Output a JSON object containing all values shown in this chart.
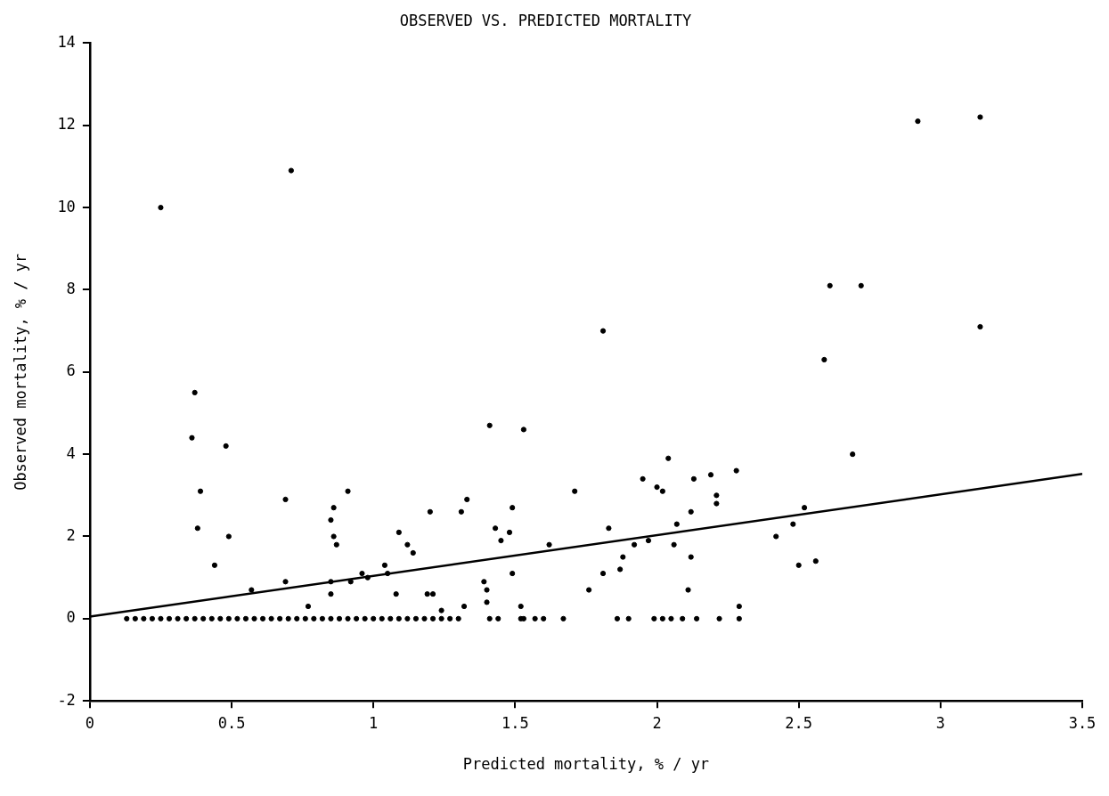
{
  "chart_data": {
    "type": "scatter",
    "title": "OBSERVED VS. PREDICTED MORTALITY",
    "xlabel": "Predicted mortality, % / yr",
    "ylabel": "Observed mortality, % / yr",
    "xlim": [
      0,
      3.5
    ],
    "xticks": [
      0,
      0.5,
      1,
      1.5,
      2,
      2.5,
      3,
      3.5
    ],
    "ylim": [
      -2,
      14
    ],
    "yticks": [
      -2,
      0,
      2,
      4,
      6,
      8,
      10,
      12,
      14
    ],
    "series": [
      {
        "marker": "circle",
        "color": "#000000",
        "x": [
          0.25,
          0.71,
          2.92,
          3.14,
          2.61,
          2.72,
          3.14,
          1.81,
          2.59,
          0.37,
          0.36,
          0.48,
          0.39,
          0.69,
          0.91,
          1.41,
          1.53,
          0.86,
          0.85,
          0.86,
          0.87,
          0.38,
          0.49,
          0.44,
          1.2,
          1.31,
          1.33,
          1.49,
          1.71,
          1.43,
          1.45,
          1.48,
          1.09,
          1.12,
          1.14,
          1.62,
          0.69,
          0.57,
          0.85,
          0.85,
          0.96,
          0.98,
          0.92,
          1.04,
          1.05,
          0.77,
          1.08,
          1.19,
          1.21,
          1.24,
          1.32,
          1.39,
          1.4,
          1.4,
          1.49,
          1.52,
          2.69,
          2.04,
          1.95,
          2.0,
          2.02,
          2.19,
          2.13,
          2.28,
          2.21,
          2.21,
          2.12,
          1.83,
          2.07,
          1.97,
          1.92,
          2.06,
          1.88,
          1.87,
          1.81,
          2.12,
          2.11,
          1.76,
          2.52,
          2.48,
          2.42,
          2.5,
          2.56,
          2.29,
          0.13,
          0.16,
          0.19,
          0.22,
          0.25,
          0.28,
          0.31,
          0.34,
          0.37,
          0.4,
          0.43,
          0.46,
          0.49,
          0.52,
          0.55,
          0.58,
          0.61,
          0.64,
          0.67,
          0.7,
          0.73,
          0.76,
          0.79,
          0.82,
          0.85,
          0.88,
          0.91,
          0.94,
          0.97,
          1.0,
          1.03,
          1.06,
          1.09,
          1.12,
          1.15,
          1.18,
          1.21,
          1.24,
          1.27,
          1.3,
          1.41,
          1.44,
          1.52,
          1.53,
          1.57,
          1.6,
          1.67,
          1.86,
          1.9,
          1.99,
          2.02,
          2.05,
          2.09,
          2.14,
          2.22,
          2.29
        ],
        "values": [
          10.0,
          10.9,
          12.1,
          12.2,
          8.1,
          8.1,
          7.1,
          7.0,
          6.3,
          5.5,
          4.4,
          4.2,
          3.1,
          2.9,
          3.1,
          4.7,
          4.6,
          2.7,
          2.4,
          2.0,
          1.8,
          2.2,
          2.0,
          1.3,
          2.6,
          2.6,
          2.9,
          2.7,
          3.1,
          2.2,
          1.9,
          2.1,
          2.1,
          1.8,
          1.6,
          1.8,
          0.9,
          0.7,
          0.9,
          0.6,
          1.1,
          1.0,
          0.9,
          1.3,
          1.1,
          0.3,
          0.6,
          0.6,
          0.6,
          0.2,
          0.3,
          0.9,
          0.7,
          0.4,
          1.1,
          0.3,
          4.0,
          3.9,
          3.4,
          3.2,
          3.1,
          3.5,
          3.4,
          3.6,
          3.0,
          2.8,
          2.6,
          2.2,
          2.3,
          1.9,
          1.8,
          1.8,
          1.5,
          1.2,
          1.1,
          1.5,
          0.7,
          0.7,
          2.7,
          2.3,
          2.0,
          1.3,
          1.4,
          0.3,
          0,
          0,
          0,
          0,
          0,
          0,
          0,
          0,
          0,
          0,
          0,
          0,
          0,
          0,
          0,
          0,
          0,
          0,
          0,
          0,
          0,
          0,
          0,
          0,
          0,
          0,
          0,
          0,
          0,
          0,
          0,
          0,
          0,
          0,
          0,
          0,
          0,
          0,
          0,
          0,
          0,
          0,
          0,
          0,
          0,
          0,
          0,
          0,
          0,
          0,
          0,
          0,
          0,
          0,
          0,
          0
        ]
      },
      {
        "type": "line",
        "marker": "none",
        "color": "#000000",
        "x": [
          0,
          3.5
        ],
        "values": [
          0.05,
          3.52
        ]
      }
    ]
  }
}
